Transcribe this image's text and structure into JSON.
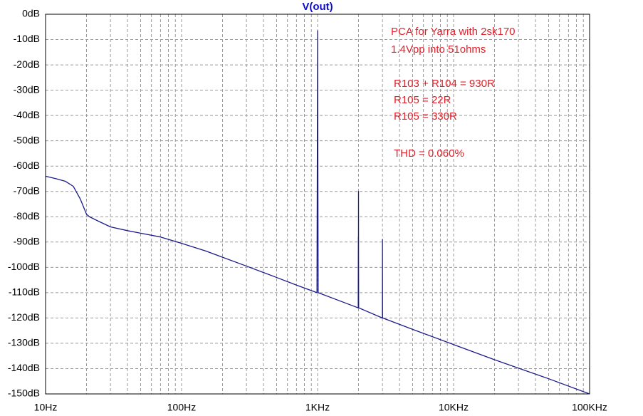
{
  "chart_data": {
    "type": "line",
    "log_x": true,
    "grid": true,
    "xlim": [
      10,
      100000
    ],
    "ylim": [
      -150,
      0
    ],
    "xticks": [
      {
        "value": 10,
        "label": "10Hz"
      },
      {
        "value": 100,
        "label": "100Hz"
      },
      {
        "value": 1000,
        "label": "1KHz"
      },
      {
        "value": 10000,
        "label": "10KHz"
      },
      {
        "value": 100000,
        "label": "100KHz"
      }
    ],
    "xminorticks": [
      20,
      30,
      40,
      50,
      60,
      70,
      80,
      90,
      200,
      300,
      400,
      500,
      600,
      700,
      800,
      900,
      2000,
      3000,
      4000,
      5000,
      6000,
      7000,
      8000,
      9000,
      20000,
      30000,
      40000,
      50000,
      60000,
      70000,
      80000,
      90000
    ],
    "yticks": [
      {
        "value": 0,
        "label": "0dB"
      },
      {
        "value": -10,
        "label": "-10dB"
      },
      {
        "value": -20,
        "label": "-20dB"
      },
      {
        "value": -30,
        "label": "-30dB"
      },
      {
        "value": -40,
        "label": "-40dB"
      },
      {
        "value": -50,
        "label": "-50dB"
      },
      {
        "value": -60,
        "label": "-60dB"
      },
      {
        "value": -70,
        "label": "-70dB"
      },
      {
        "value": -80,
        "label": "-80dB"
      },
      {
        "value": -90,
        "label": "-90dB"
      },
      {
        "value": -100,
        "label": "-100dB"
      },
      {
        "value": -110,
        "label": "-110dB"
      },
      {
        "value": -120,
        "label": "-120dB"
      },
      {
        "value": -130,
        "label": "-130dB"
      },
      {
        "value": -140,
        "label": "-140dB"
      },
      {
        "value": -150,
        "label": "-150dB"
      }
    ],
    "series": [
      {
        "name": "V(out)",
        "color": "#1a1a8c",
        "x": [
          10,
          12,
          14,
          16,
          18,
          20,
          21,
          25,
          30,
          40,
          50,
          70,
          100,
          150,
          200,
          300,
          500,
          700,
          990,
          995,
          1000,
          1005,
          1010,
          1500,
          1990,
          1995,
          1998,
          2000,
          2002,
          2005,
          2010,
          2990,
          2995,
          3000,
          3005,
          3010,
          5000,
          10000,
          20000,
          50000,
          100000
        ],
        "values": [
          -64,
          -65,
          -66,
          -68,
          -73,
          -79,
          -80,
          -82,
          -84,
          -85.5,
          -86.5,
          -88,
          -90.5,
          -93.5,
          -96,
          -99.5,
          -104,
          -107,
          -110,
          -62,
          -6.5,
          -62,
          -110,
          -113.5,
          -116,
          -88,
          -97,
          -70,
          -97,
          -116,
          -116,
          -120,
          -120,
          -89,
          -120,
          -120,
          -124.5,
          -130.5,
          -136.5,
          -144,
          -150
        ]
      }
    ],
    "annotations": [
      "PCA for Yarra with 2sk170",
      "1.4Vpp into 51ohms",
      "R103 + R104 = 930R",
      "R105 = 22R",
      "R105 = 330R",
      "THD = 0.060%"
    ]
  }
}
